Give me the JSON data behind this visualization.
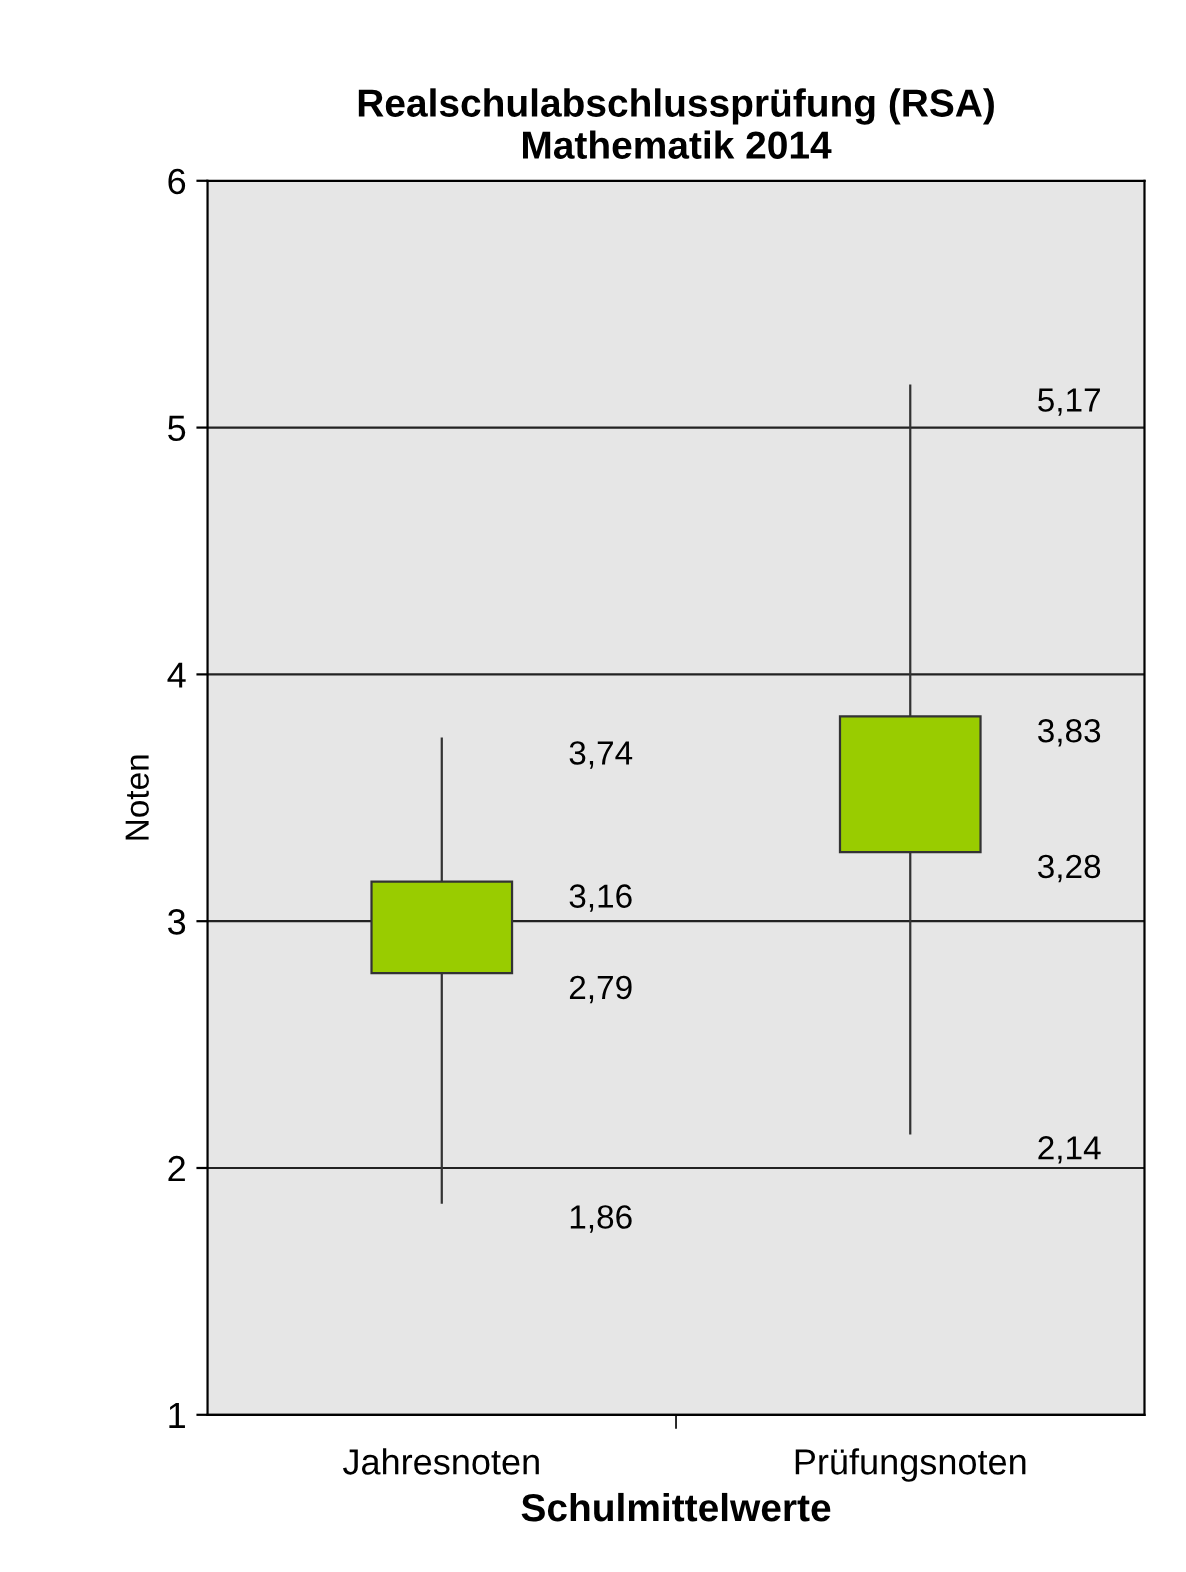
{
  "chart_data": {
    "type": "candlestick",
    "title": "Realschulabschlussprüfung (RSA)\nMathematik 2014",
    "xlabel": "Schulmittelwerte",
    "ylabel": "Noten",
    "categories": [
      "Jahresnoten",
      "Prüfungsnoten"
    ],
    "ohlc": [
      [
        2.79,
        3.74,
        1.86,
        3.16
      ],
      [
        3.28,
        5.17,
        2.14,
        3.83
      ]
    ],
    "color": "#99cc00",
    "ylim": [
      1,
      6
    ],
    "yticks": [
      1,
      2,
      3,
      4,
      5,
      6
    ],
    "grid": "y",
    "value_labels": [
      [
        "2,79",
        "3,74",
        "1,86",
        "3,16"
      ],
      [
        "3,28",
        "5,17",
        "2,14",
        "3,83"
      ]
    ]
  }
}
